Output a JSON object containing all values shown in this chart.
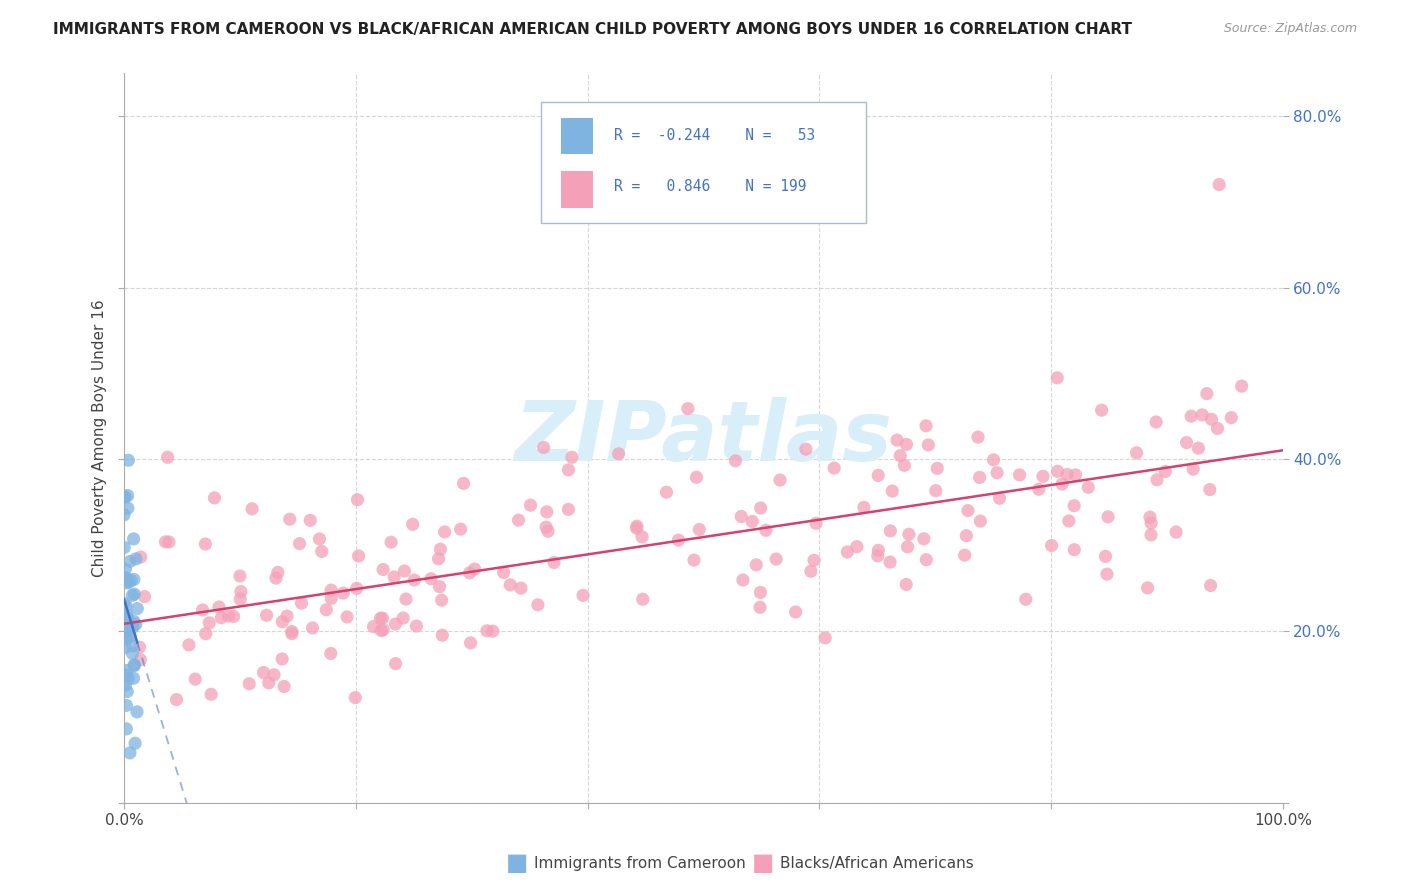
{
  "title": "IMMIGRANTS FROM CAMEROON VS BLACK/AFRICAN AMERICAN CHILD POVERTY AMONG BOYS UNDER 16 CORRELATION CHART",
  "source": "Source: ZipAtlas.com",
  "ylabel": "Child Poverty Among Boys Under 16",
  "legend_items": [
    {
      "label": "Immigrants from Cameroon",
      "color": "#a8c8e8",
      "R": "-0.244",
      "N": "53"
    },
    {
      "label": "Blacks/African Americans",
      "color": "#f4a8c0",
      "R": "0.846",
      "N": "199"
    }
  ],
  "blue_R": -0.244,
  "blue_N": 53,
  "pink_R": 0.846,
  "pink_N": 199,
  "xlim": [
    0,
    1.0
  ],
  "ylim": [
    0,
    0.85
  ],
  "xtick_positions": [
    0.0,
    0.2,
    0.4,
    0.6,
    0.8,
    1.0
  ],
  "ytick_positions": [
    0.0,
    0.2,
    0.4,
    0.6,
    0.8
  ],
  "ytick_labels": [
    "",
    "20.0%",
    "40.0%",
    "60.0%",
    "80.0%"
  ],
  "xtick_labels": [
    "0.0%",
    "",
    "",
    "",
    "",
    "100.0%"
  ],
  "watermark": "ZIPatlas",
  "background_color": "#ffffff",
  "grid_color": "#cccccc",
  "blue_dot_color": "#7fb3e0",
  "pink_dot_color": "#f4a0b8",
  "blue_line_color": "#4472c4",
  "pink_line_color": "#d44070",
  "title_fontsize": 11,
  "source_fontsize": 9,
  "tick_fontsize": 11,
  "ylabel_fontsize": 11,
  "watermark_fontsize": 60,
  "watermark_color": "#d8eef8",
  "legend_box_color": "#e8e8f0",
  "legend_text_color": "#4472c4",
  "legend_R_color": "#4472c4",
  "bottom_legend_text_color": "#444444"
}
